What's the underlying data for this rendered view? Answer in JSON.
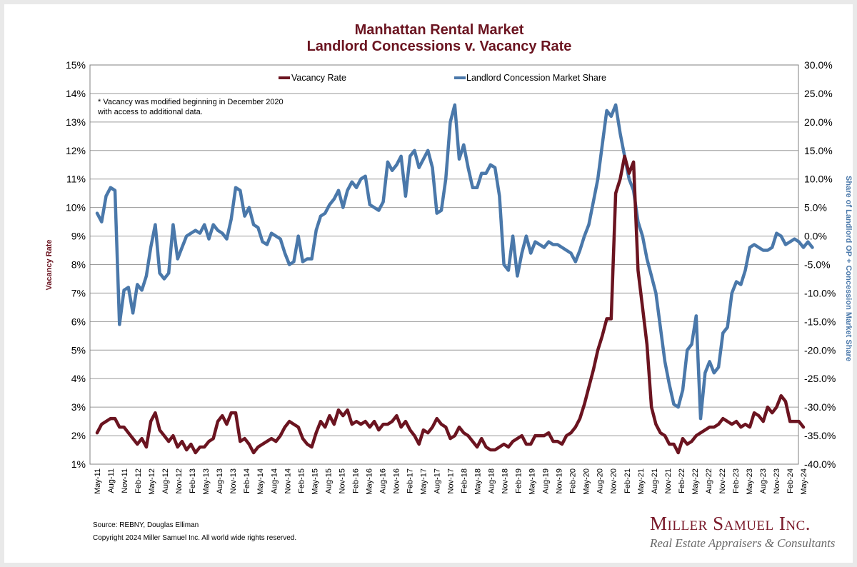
{
  "chart_data": {
    "type": "line",
    "title": "Manhattan Rental Market",
    "subtitle": "Landlord Concessions v. Vacancy Rate",
    "ylabel_left": "Vacancy Rate",
    "ylabel_right": "Share of Landlord OP + Concession Market Share",
    "note_lines": [
      "* Vacancy was modified beginning in December 2020",
      "with access to additional data."
    ],
    "left_axis": {
      "min": 1,
      "max": 15,
      "ticks": [
        "1%",
        "2%",
        "3%",
        "4%",
        "5%",
        "6%",
        "7%",
        "8%",
        "9%",
        "10%",
        "11%",
        "12%",
        "13%",
        "14%",
        "15%"
      ]
    },
    "right_axis": {
      "min": -40,
      "max": 30,
      "ticks": [
        "-40.0%",
        "-35.0%",
        "-30.0%",
        "-25.0%",
        "-20.0%",
        "-15.0%",
        "-10.0%",
        "-5.0%",
        "0.0%",
        "5.0%",
        "10.0%",
        "15.0%",
        "20.0%",
        "25.0%",
        "30.0%"
      ]
    },
    "x_ticks": [
      "May-11",
      "Aug-11",
      "Nov-11",
      "Feb-12",
      "May-12",
      "Aug-12",
      "Nov-12",
      "Feb-13",
      "May-13",
      "Aug-13",
      "Nov-13",
      "Feb-14",
      "May-14",
      "Aug-14",
      "Nov-14",
      "Feb-15",
      "May-15",
      "Aug-15",
      "Nov-15",
      "Feb-16",
      "May-16",
      "Aug-16",
      "Nov-16",
      "Feb-17",
      "May-17",
      "Aug-17",
      "Nov-17",
      "Feb-18",
      "May-18",
      "Aug-18",
      "Nov-18",
      "Feb-19",
      "May-19",
      "Aug-19",
      "Nov-19",
      "Feb-20",
      "May-20",
      "Aug-20",
      "Nov-20",
      "Feb-21",
      "May-21",
      "Aug-21",
      "Nov-21",
      "Feb-22",
      "May-22",
      "Aug-22",
      "Nov-22",
      "Feb-23",
      "May-23",
      "Aug-23",
      "Nov-23",
      "Feb-24",
      "May-24"
    ],
    "legend": {
      "placement": "top-center"
    },
    "series": [
      {
        "name": "Vacancy Rate",
        "axis": "left",
        "color": "#6b1420",
        "values": [
          2.1,
          2.4,
          2.5,
          2.6,
          2.6,
          2.3,
          2.3,
          2.1,
          1.9,
          1.7,
          1.9,
          1.6,
          2.5,
          2.8,
          2.2,
          2.0,
          1.8,
          2.0,
          1.6,
          1.8,
          1.5,
          1.7,
          1.4,
          1.6,
          1.6,
          1.8,
          1.9,
          2.5,
          2.7,
          2.4,
          2.8,
          2.8,
          1.8,
          1.9,
          1.7,
          1.4,
          1.6,
          1.7,
          1.8,
          1.9,
          1.8,
          2.0,
          2.3,
          2.5,
          2.4,
          2.3,
          1.9,
          1.7,
          1.6,
          2.1,
          2.5,
          2.3,
          2.7,
          2.4,
          2.9,
          2.7,
          2.9,
          2.4,
          2.5,
          2.4,
          2.5,
          2.3,
          2.5,
          2.2,
          2.4,
          2.4,
          2.5,
          2.7,
          2.3,
          2.5,
          2.2,
          2.0,
          1.7,
          2.2,
          2.1,
          2.3,
          2.6,
          2.4,
          2.3,
          1.9,
          2.0,
          2.3,
          2.1,
          2.0,
          1.8,
          1.6,
          1.9,
          1.6,
          1.5,
          1.5,
          1.6,
          1.7,
          1.6,
          1.8,
          1.9,
          2.0,
          1.7,
          1.7,
          2.0,
          2.0,
          2.0,
          2.1,
          1.8,
          1.8,
          1.7,
          2.0,
          2.1,
          2.3,
          2.6,
          3.1,
          3.7,
          4.3,
          5.0,
          5.5,
          6.1,
          6.1,
          10.5,
          11.0,
          11.8,
          11.2,
          11.6,
          7.8,
          6.5,
          5.2,
          3.0,
          2.4,
          2.1,
          2.0,
          1.7,
          1.7,
          1.4,
          1.9,
          1.7,
          1.8,
          2.0,
          2.1,
          2.2,
          2.3,
          2.3,
          2.4,
          2.6,
          2.5,
          2.4,
          2.5,
          2.3,
          2.4,
          2.3,
          2.8,
          2.7,
          2.5,
          3.0,
          2.8,
          3.0,
          3.4,
          3.2,
          2.5,
          2.5,
          2.5,
          2.3
        ]
      },
      {
        "name": "Landlord Concession Market Share",
        "axis": "right",
        "color": "#4a78aa",
        "values": [
          4.0,
          2.5,
          7.0,
          8.5,
          8.0,
          -15.5,
          -9.5,
          -9.0,
          -13.5,
          -8.5,
          -9.5,
          -7.0,
          -2.0,
          2.0,
          -6.5,
          -7.5,
          -6.5,
          2.0,
          -4.0,
          -2.0,
          0.0,
          0.5,
          1.0,
          0.5,
          2.0,
          -0.5,
          2.0,
          1.0,
          0.5,
          -0.5,
          3.0,
          8.5,
          8.0,
          3.5,
          5.0,
          2.0,
          1.5,
          -1.0,
          -1.5,
          0.5,
          0.0,
          -0.5,
          -3.0,
          -5.0,
          -4.5,
          0.0,
          -4.5,
          -4.0,
          -4.0,
          1.0,
          3.5,
          4.0,
          5.5,
          6.5,
          8.0,
          5.0,
          8.0,
          9.5,
          8.5,
          10.0,
          10.5,
          5.5,
          5.0,
          4.5,
          6.0,
          13.0,
          11.5,
          12.5,
          14.0,
          7.0,
          14.0,
          15.0,
          12.0,
          13.5,
          15.0,
          12.0,
          4.0,
          4.5,
          10.0,
          20.0,
          23.0,
          13.5,
          16.0,
          12.0,
          8.5,
          8.5,
          11.0,
          11.0,
          12.5,
          12.0,
          7.0,
          -5.0,
          -6.0,
          0.0,
          -7.0,
          -3.0,
          0.0,
          -3.0,
          -1.0,
          -1.5,
          -2.0,
          -1.0,
          -1.5,
          -1.5,
          -2.0,
          -2.5,
          -3.0,
          -4.5,
          -2.5,
          0.0,
          2.0,
          6.0,
          10.0,
          16.0,
          22.0,
          21.0,
          23.0,
          18.0,
          14.0,
          10.0,
          8.0,
          2.5,
          0.0,
          -4.0,
          -7.0,
          -10.0,
          -16.0,
          -22.0,
          -26.0,
          -29.5,
          -30.0,
          -27.0,
          -20.0,
          -19.0,
          -14.0,
          -32.0,
          -24.0,
          -22.0,
          -24.0,
          -23.0,
          -17.0,
          -16.0,
          -10.0,
          -8.0,
          -8.5,
          -6.0,
          -2.0,
          -1.5,
          -2.0,
          -2.5,
          -2.5,
          -2.0,
          0.5,
          0.0,
          -1.5,
          -1.0,
          -0.5,
          -1.0,
          -2.0,
          -1.0,
          -2.0
        ]
      }
    ]
  },
  "footer": {
    "source": "Source: REBNY, Douglas Elliman",
    "copyright": "Copyright 2024 Miller Samuel Inc.  All world wide rights reserved."
  },
  "brand": {
    "name": "Miller Samuel Inc.",
    "tagline": "Real Estate Appraisers & Consultants"
  }
}
